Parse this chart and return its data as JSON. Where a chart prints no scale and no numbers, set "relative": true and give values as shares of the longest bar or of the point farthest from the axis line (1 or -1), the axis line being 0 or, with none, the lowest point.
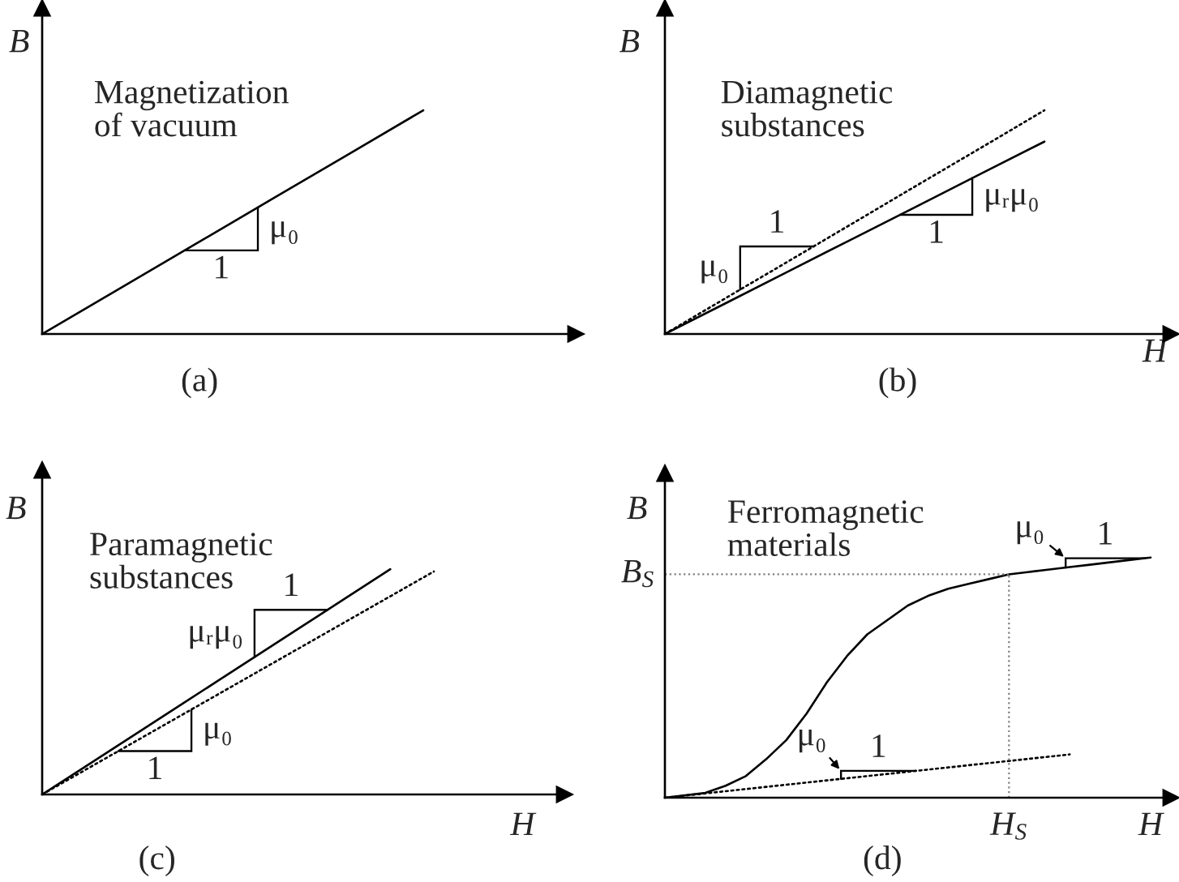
{
  "chart_data": [
    {
      "type": "line",
      "relative": true,
      "title": "Magnetization\nof vacuum",
      "ylabel": "B",
      "categories": [
        null,
        null,
        null,
        null,
        null,
        null,
        null,
        null
      ],
      "series": [
        {
          "color": "#000000",
          "line_style": "solid",
          "values": [
            0,
            0.2,
            0.4,
            0.6,
            0.8,
            1,
            null,
            null
          ]
        }
      ],
      "annotations": [
        "μ₀",
        "1",
        "(a)"
      ]
    },
    {
      "type": "line",
      "relative": true,
      "title": "Diamagnetic\nsubstances",
      "xlabel": "H",
      "ylabel": "B",
      "categories": [
        null,
        null,
        null,
        null,
        null,
        null,
        null,
        null,
        null
      ],
      "series": [
        {
          "color": "#000000",
          "line_style": "solid",
          "values": [
            0,
            0.143,
            0.287,
            0.43,
            0.573,
            0.717,
            0.86,
            null,
            null
          ]
        },
        {
          "color": "#000000",
          "line_style": "dotted",
          "values": [
            0,
            0.167,
            0.333,
            0.5,
            0.667,
            0.833,
            1,
            null,
            null
          ]
        }
      ],
      "annotations": [
        "μ₀",
        "1",
        "μᵣμ₀",
        "1",
        "(b)"
      ]
    },
    {
      "type": "line",
      "relative": true,
      "title": "Paramagnetic\nsubstances",
      "xlabel": "H",
      "ylabel": "B",
      "categories": [
        null,
        null,
        null,
        null,
        null,
        null,
        null,
        null,
        null,
        null,
        null,
        null,
        null
      ],
      "series": [
        {
          "color": "#000000",
          "line_style": "solid",
          "values": [
            0,
            0.125,
            0.25,
            0.375,
            0.5,
            0.625,
            0.75,
            0.875,
            1,
            null,
            null,
            null,
            null
          ]
        },
        {
          "color": "#000000",
          "line_style": "dotted",
          "values": [
            0,
            0.11,
            0.22,
            0.33,
            0.44,
            0.55,
            0.66,
            0.77,
            0.88,
            0.99,
            null,
            null,
            null
          ]
        }
      ],
      "annotations": [
        "μᵣμ₀",
        "1",
        "μ₀",
        "1",
        "(c)"
      ]
    },
    {
      "type": "line",
      "relative": true,
      "title": "Ferromagnetic\nmaterials",
      "xlabel": "H",
      "ylabel": "B",
      "categories": [
        null,
        null,
        null,
        null,
        null,
        null,
        null,
        null,
        null,
        null,
        null,
        null,
        null,
        null,
        null,
        null,
        null,
        null,
        null,
        null,
        null,
        null,
        null,
        null,
        null,
        null
      ],
      "series": [
        {
          "color": "#000000",
          "line_style": "solid",
          "values": [
            0,
            0.01,
            0.02,
            0.05,
            0.09,
            0.16,
            0.24,
            0.35,
            0.48,
            0.59,
            0.68,
            0.74,
            0.8,
            0.84,
            0.87,
            0.89,
            0.91,
            0.93,
            0.94,
            0.95,
            0.96,
            0.97,
            0.98,
            0.99,
            1,
            null
          ]
        },
        {
          "color": "#000000",
          "line_style": "dotted",
          "values": [
            0,
            0.009,
            0.018,
            0.027,
            0.036,
            0.045,
            0.054,
            0.063,
            0.072,
            0.081,
            0.09,
            0.099,
            0.108,
            0.117,
            0.126,
            0.135,
            0.144,
            0.153,
            0.162,
            0.171,
            0.18,
            null,
            null,
            null,
            null,
            null
          ]
        }
      ],
      "ref_lines": [
        {
          "axis": "y",
          "value": 0.93,
          "label": "B$_{S}$",
          "color": "#808080",
          "line_style": "dotted"
        },
        {
          "axis": "x",
          "value": "H$_{S}$",
          "color": "#808080",
          "line_style": "dotted"
        }
      ],
      "annotations": [
        "μ₀",
        "1",
        "μ₀",
        "1",
        "(d)"
      ]
    }
  ]
}
